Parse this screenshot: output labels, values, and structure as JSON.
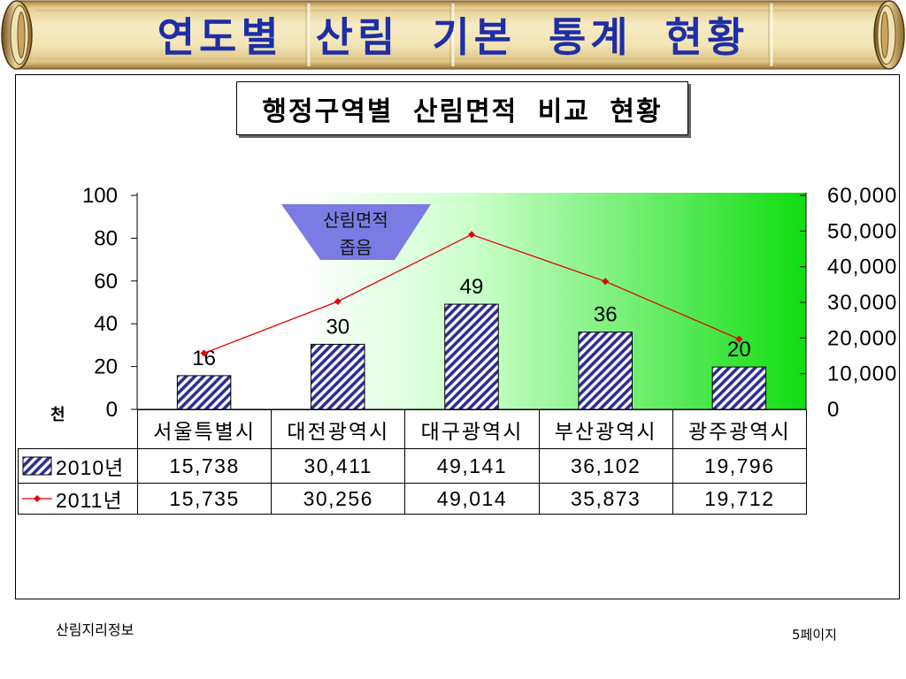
{
  "banner": {
    "title": "연도별 산림 기본 통계 현황"
  },
  "subtitle": "행정구역별 산림면적 비교 현황",
  "colors": {
    "title_text": "#1e2ea6",
    "bar_hatch": "#2e2e96",
    "line": "#e60000",
    "plot_gradient_end": "#10dd10",
    "callout_fill": "#7b7be3"
  },
  "chart_data": {
    "type": "bar",
    "categories": [
      "서울특별시",
      "대전광역시",
      "대구광역시",
      "부산광역시",
      "광주광역시"
    ],
    "series": [
      {
        "name": "2010년",
        "type": "bar",
        "axis": "left",
        "values": [
          15.738,
          30.411,
          49.141,
          36.102,
          19.796
        ],
        "data_labels": [
          "16",
          "30",
          "49",
          "36",
          "20"
        ],
        "table_values": [
          "15,738",
          "30,411",
          "49,141",
          "36,102",
          "19,796"
        ]
      },
      {
        "name": "2011년",
        "type": "line",
        "axis": "right",
        "values": [
          15735,
          30256,
          49014,
          35873,
          19712
        ],
        "table_values": [
          "15,735",
          "30,256",
          "49,014",
          "35,873",
          "19,712"
        ]
      }
    ],
    "y_left": {
      "unit_label": "천",
      "range": [
        0,
        100
      ],
      "ticks": [
        "100",
        "80",
        "60",
        "40",
        "20",
        "0"
      ]
    },
    "y_right": {
      "range": [
        0,
        60000
      ],
      "ticks": [
        "60,000",
        "50,000",
        "40,000",
        "30,000",
        "20,000",
        "10,000",
        "0"
      ]
    },
    "annotation": {
      "lines": [
        "산림면적",
        "좁음"
      ]
    },
    "grid": false,
    "legend": "bottom"
  },
  "footer": {
    "left": "산림지리정보",
    "right": "5페이지"
  }
}
